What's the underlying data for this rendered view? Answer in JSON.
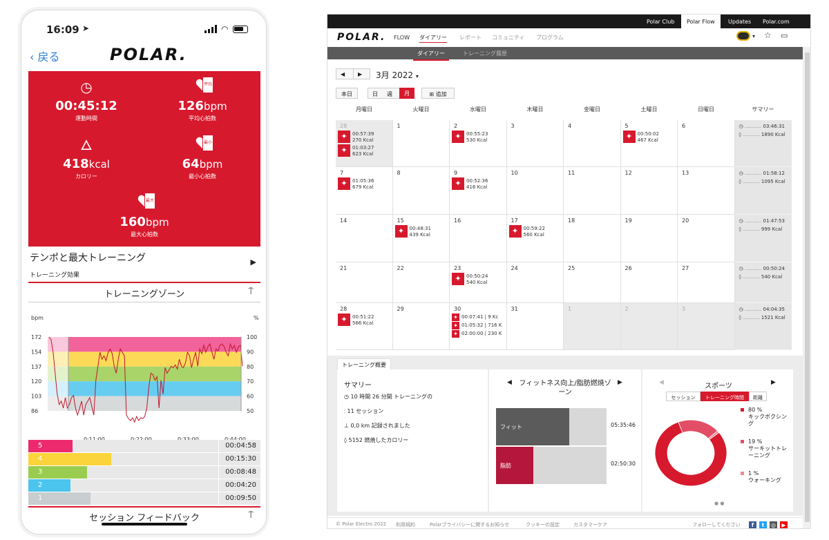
{
  "phone": {
    "status_time": "16:09",
    "back_label": "戻る",
    "logo": "POLAR.",
    "stats": [
      {
        "icon": "stopwatch-icon",
        "value": "00:45:12",
        "unit": "",
        "label": "運動時間"
      },
      {
        "icon": "heart-avg-icon",
        "value": "126",
        "unit": "bpm",
        "label": "平均心拍数"
      },
      {
        "icon": "flame-icon",
        "value": "418",
        "unit": "kcal",
        "label": "カロリー"
      },
      {
        "icon": "heart-min-icon",
        "value": "64",
        "unit": "bpm",
        "label": "最小心拍数"
      },
      {
        "icon": "heart-max-icon",
        "value": "160",
        "unit": "bpm",
        "label": "最大心拍数"
      }
    ],
    "heart_tags": {
      "avg": "平均",
      "min": "最小",
      "max": "最大"
    },
    "session_title": "テンポと最大トレーニング",
    "session_sub": "トレーニング効果",
    "zone_title": "トレーニングゾーン",
    "feedback_title": "セッション フィードバック",
    "chart": {
      "y_label_left": "bpm",
      "y_label_right": "%",
      "y_ticks_left": [
        "172",
        "154",
        "137",
        "120",
        "103",
        "86"
      ],
      "y_ticks_right": [
        "100",
        "90",
        "80",
        "70",
        "60",
        "50"
      ],
      "x_ticks": [
        "0:11:00",
        "0:22:00",
        "0:33:00",
        "0:44:00"
      ],
      "zone_colors": [
        "#f0478a",
        "#fbd33b",
        "#9acd4f",
        "#4bc4ee",
        "#cfd3d4"
      ]
    },
    "zones": [
      {
        "num": "5",
        "time": "00:04:58",
        "fraction": 0.1,
        "color": "#ec2a6d"
      },
      {
        "num": "4",
        "time": "00:15:30",
        "fraction": 0.34,
        "color": "#fbd33b"
      },
      {
        "num": "3",
        "time": "00:08:48",
        "fraction": 0.19,
        "color": "#9acd4f"
      },
      {
        "num": "2",
        "time": "00:04:20",
        "fraction": 0.09,
        "color": "#4bc4ee"
      },
      {
        "num": "1",
        "time": "00:09:50",
        "fraction": 0.21,
        "color": "#c8cdcf"
      }
    ]
  },
  "desktop": {
    "topbar": [
      "Polar Club",
      "Polar Flow",
      "Updates",
      "Polar.com"
    ],
    "topbar_active": "Polar Flow",
    "logo": "POLAR.",
    "flow_label": "FLOW",
    "nav": [
      "ダイアリー",
      "レポート",
      "コミュニティ",
      "プログラム"
    ],
    "subnav": [
      "ダイアリー",
      "トレーニング履歴"
    ],
    "month_label": "3月 2022",
    "today_btn": "本日",
    "view_btns": [
      "日",
      "週",
      "月"
    ],
    "add_btn": "追加",
    "weekdays": [
      "月曜日",
      "火曜日",
      "水曜日",
      "木曜日",
      "金曜日",
      "土曜日",
      "日曜日",
      "サマリー"
    ],
    "weeks": [
      {
        "days": [
          {
            "d": "28",
            "grey": true,
            "entries": [
              {
                "t": "00:57:39",
                "k": "270 Kcal"
              },
              {
                "t": "01:03:27",
                "k": "623 Kcal"
              }
            ]
          },
          {
            "d": "1",
            "entries": []
          },
          {
            "d": "2",
            "entries": [
              {
                "t": "00:55:23",
                "k": "530 Kcal"
              }
            ]
          },
          {
            "d": "3",
            "entries": []
          },
          {
            "d": "4",
            "entries": []
          },
          {
            "d": "5",
            "entries": [
              {
                "t": "00:50:02",
                "k": "467 Kcal"
              }
            ]
          },
          {
            "d": "6",
            "entries": []
          }
        ],
        "sum": {
          "time": "03:46:31",
          "kcal": "1890 Kcal"
        }
      },
      {
        "days": [
          {
            "d": "7",
            "entries": [
              {
                "t": "01:05:36",
                "k": "679 Kcal"
              }
            ]
          },
          {
            "d": "8",
            "entries": []
          },
          {
            "d": "9",
            "entries": [
              {
                "t": "00:52:36",
                "k": "416 Kcal"
              }
            ]
          },
          {
            "d": "10",
            "entries": []
          },
          {
            "d": "11",
            "entries": []
          },
          {
            "d": "12",
            "entries": []
          },
          {
            "d": "13",
            "entries": []
          }
        ],
        "sum": {
          "time": "01:58:12",
          "kcal": "1095 Kcal"
        }
      },
      {
        "days": [
          {
            "d": "14",
            "entries": []
          },
          {
            "d": "15",
            "entries": [
              {
                "t": "00:48:31",
                "k": "439 Kcal"
              }
            ]
          },
          {
            "d": "16",
            "entries": []
          },
          {
            "d": "17",
            "entries": [
              {
                "t": "00:59:22",
                "k": "560 Kcal"
              }
            ]
          },
          {
            "d": "18",
            "entries": []
          },
          {
            "d": "19",
            "entries": []
          },
          {
            "d": "20",
            "entries": []
          }
        ],
        "sum": {
          "time": "01:47:53",
          "kcal": "999 Kcal"
        }
      },
      {
        "days": [
          {
            "d": "21",
            "entries": []
          },
          {
            "d": "22",
            "entries": []
          },
          {
            "d": "23",
            "entries": [
              {
                "t": "00:50:24",
                "k": "540 Kcal"
              }
            ]
          },
          {
            "d": "24",
            "entries": []
          },
          {
            "d": "25",
            "entries": []
          },
          {
            "d": "26",
            "entries": []
          },
          {
            "d": "27",
            "entries": []
          }
        ],
        "sum": {
          "time": "00:50:24",
          "kcal": "540 Kcal"
        }
      },
      {
        "days": [
          {
            "d": "28",
            "entries": [
              {
                "t": "00:51:22",
                "k": "566 Kcal"
              }
            ]
          },
          {
            "d": "29",
            "entries": []
          },
          {
            "d": "30",
            "small": true,
            "entries": [
              {
                "t": "00:07:41 | 9 Kc"
              },
              {
                "t": "01:05:32 | 716 K"
              },
              {
                "t": "02:00:00 | 230 K"
              }
            ]
          },
          {
            "d": "31",
            "entries": []
          },
          {
            "d": "1",
            "grey": true,
            "entries": []
          },
          {
            "d": "2",
            "grey": true,
            "entries": []
          },
          {
            "d": "3",
            "grey": true,
            "entries": []
          }
        ],
        "sum": {
          "time": "04:04:35",
          "kcal": "1521 Kcal"
        }
      }
    ],
    "overview": {
      "tab": "トレーニング概要",
      "summary_title": "サマリー",
      "summary_rows": [
        {
          "icon": "stopwatch-icon",
          "text": "10 時間 26 分間 トレーニングの"
        },
        {
          "icon": "sessions-icon",
          "text": "11 セッション"
        },
        {
          "icon": "distance-icon",
          "text": "0,0 km 記録されました"
        },
        {
          "icon": "flame-icon",
          "text": "5152 燃焼したカロリー"
        }
      ],
      "fitness_title": "フィットネス向上/脂肪燃焼ゾーン",
      "fitness_rows": [
        {
          "label": "フィット",
          "time": "05:35:46",
          "fraction": 0.66,
          "color": "#5b5b5b"
        },
        {
          "label": "脂肪",
          "time": "02:50:30",
          "fraction": 0.34,
          "color": "#b5163b"
        }
      ],
      "sports_title": "スポーツ",
      "sports_tabs": [
        "セッション",
        "トレーニング時間",
        "距離"
      ],
      "sports_active_tab": "トレーニング時間",
      "sports_legend": [
        {
          "pct": "80 %",
          "name": "キックボクシング",
          "color": "#d7192d",
          "value": 80
        },
        {
          "pct": "19 %",
          "name": "サーキットトレーニング",
          "color": "#e24e65",
          "value": 19
        },
        {
          "pct": "1 %",
          "name": "ウォーキング",
          "color": "#ed8a98",
          "value": 1
        }
      ]
    },
    "footer": {
      "copyright": "© Polar Electro 2022",
      "links": [
        "利用規約",
        "Polarプライバシーに関するお知らせ",
        "クッキーの設定",
        "カスタマーケア"
      ],
      "follow": "フォローしてください"
    }
  }
}
